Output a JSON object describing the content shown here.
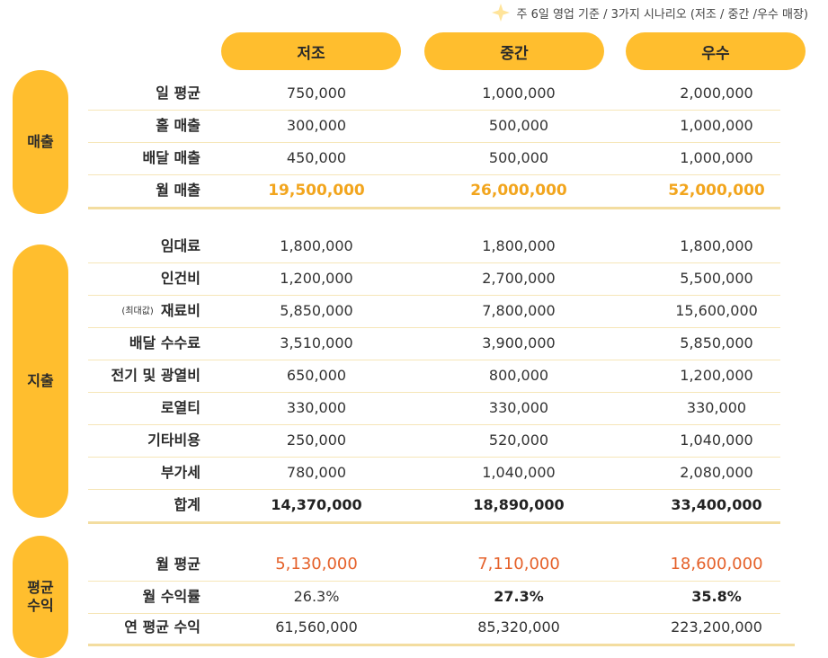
{
  "note": "주 6일 영업 기준 / 3가지 시나리오 (저조 / 중간 /우수 매장)",
  "columns": [
    "저조",
    "중간",
    "우수"
  ],
  "sections": {
    "revenue": "매출",
    "expense": "지출",
    "profit_line1": "평균",
    "profit_line2": "수익"
  },
  "revenue_rows": [
    {
      "label": "일 평균",
      "v": [
        "750,000",
        "1,000,000",
        "2,000,000"
      ]
    },
    {
      "label": "홀 매출",
      "v": [
        "300,000",
        "500,000",
        "1,000,000"
      ]
    },
    {
      "label": "배달 매출",
      "v": [
        "450,000",
        "500,000",
        "1,000,000"
      ]
    },
    {
      "label": "월 매출",
      "v": [
        "19,500,000",
        "26,000,000",
        "52,000,000"
      ]
    }
  ],
  "expense_rows": [
    {
      "label": "임대료",
      "v": [
        "1,800,000",
        "1,800,000",
        "1,800,000"
      ]
    },
    {
      "label": "인건비",
      "v": [
        "1,200,000",
        "2,700,000",
        "5,500,000"
      ]
    },
    {
      "label": "재료비",
      "sub": "(최대값)",
      "v": [
        "5,850,000",
        "7,800,000",
        "15,600,000"
      ]
    },
    {
      "label": "배달 수수료",
      "v": [
        "3,510,000",
        "3,900,000",
        "5,850,000"
      ]
    },
    {
      "label": "전기 및 광열비",
      "v": [
        "650,000",
        "800,000",
        "1,200,000"
      ]
    },
    {
      "label": "로열티",
      "v": [
        "330,000",
        "330,000",
        "330,000"
      ]
    },
    {
      "label": "기타비용",
      "v": [
        "250,000",
        "520,000",
        "1,040,000"
      ]
    },
    {
      "label": "부가세",
      "v": [
        "780,000",
        "1,040,000",
        "2,080,000"
      ]
    },
    {
      "label": "합계",
      "v": [
        "14,370,000",
        "18,890,000",
        "33,400,000"
      ]
    }
  ],
  "profit_rows": [
    {
      "label": "월 평균",
      "v": [
        "5,130,000",
        "7,110,000",
        "18,600,000"
      ]
    },
    {
      "label": "월 수익률",
      "v": [
        "26.3%",
        "27.3%",
        "35.8%"
      ]
    },
    {
      "label": "연 평균 수익",
      "v": [
        "61,560,000",
        "85,320,000",
        "223,200,000"
      ]
    }
  ],
  "colors": {
    "accent": "#FFBE2E",
    "highlight": "#F2A51D",
    "profit": "#E5612A"
  }
}
